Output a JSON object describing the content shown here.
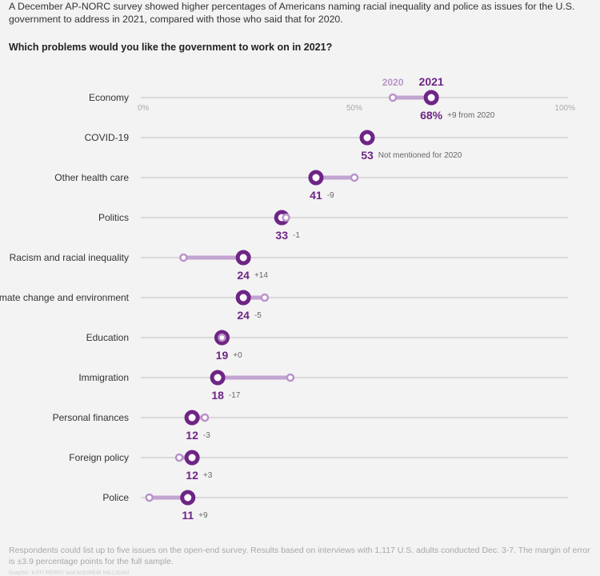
{
  "intro": "A December AP-NORC survey showed higher percentages of Americans naming racial inequality and police as issues for the U.S. government to address in 2021, compared with those who said that for 2020.",
  "question": "Which problems would you like the government to work on in 2021?",
  "footnote": "Respondents could list up to five issues on the open-end survey. Results based on interviews with 1,117 U.S. adults conducted Dec. 3-7. The margin of error is ±3.9 percentage points for the full sample.",
  "credit": "Graphic: KATI PERRY and ANDREW MILLIGAN",
  "chart_data": {
    "type": "dumbbell",
    "title": "Which problems would you like the government to work on in 2021?",
    "xlim": [
      0,
      100
    ],
    "ticks": [
      "0%",
      "50%",
      "100%"
    ],
    "tick_values": [
      0,
      50,
      100
    ],
    "grid": true,
    "legend": {
      "year_2020": "2020",
      "year_2021": "2021"
    },
    "colors": {
      "year_2021": "#6e2585",
      "year_2020": "#b993c9",
      "connector": "#c3a3d1",
      "grid": "#d9d9d9"
    },
    "rows": [
      {
        "category": "Economy",
        "v2021": 68,
        "v2020": 59,
        "label": "68%",
        "change": "+9 from 2020"
      },
      {
        "category": "COVID-19",
        "v2021": 53,
        "v2020": null,
        "label": "53",
        "change": "Not mentioned for 2020"
      },
      {
        "category": "Other health care",
        "v2021": 41,
        "v2020": 50,
        "label": "41",
        "change": "-9"
      },
      {
        "category": "Politics",
        "v2021": 33,
        "v2020": 34,
        "label": "33",
        "change": "-1"
      },
      {
        "category": "Racism and racial inequality",
        "v2021": 24,
        "v2020": 10,
        "label": "24",
        "change": "+14"
      },
      {
        "category": "Climate change and environment",
        "v2021": 24,
        "v2020": 29,
        "label": "24",
        "change": "-5"
      },
      {
        "category": "Education",
        "v2021": 19,
        "v2020": 19,
        "label": "19",
        "change": "+0"
      },
      {
        "category": "Immigration",
        "v2021": 18,
        "v2020": 35,
        "label": "18",
        "change": "-17"
      },
      {
        "category": "Personal finances",
        "v2021": 12,
        "v2020": 15,
        "label": "12",
        "change": "-3"
      },
      {
        "category": "Foreign policy",
        "v2021": 12,
        "v2020": 9,
        "label": "12",
        "change": "+3"
      },
      {
        "category": "Police",
        "v2021": 11,
        "v2020": 2,
        "label": "11",
        "change": "+9"
      }
    ]
  }
}
